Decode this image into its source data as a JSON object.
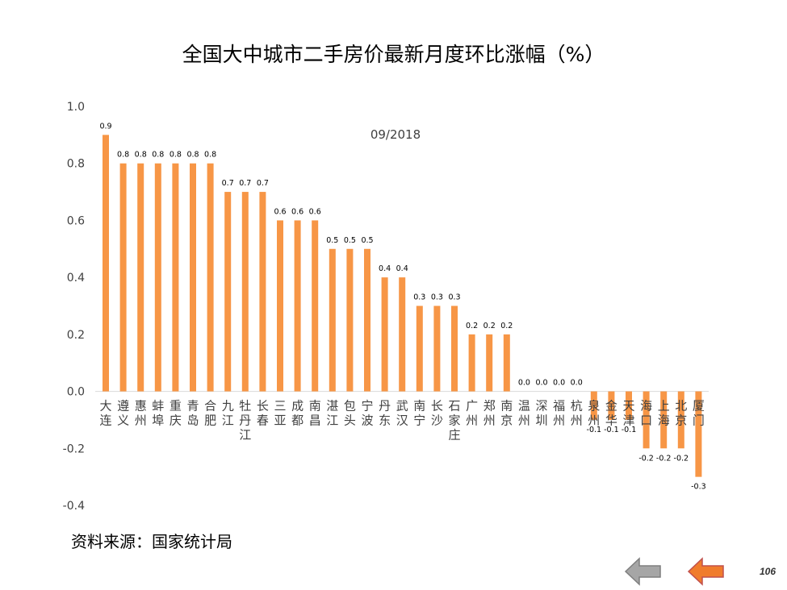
{
  "title": "全国大中城市二手房价最新月度环比涨幅（%）",
  "source": "资料来源：国家统计局",
  "page_number": "106",
  "colors": {
    "bar": "#F79646",
    "nav_back": "#A6A6A6",
    "nav_forward": "#F07C2C"
  },
  "icons": {
    "back": "left-arrow-icon",
    "forward": "left-arrow-icon"
  },
  "chart_data": {
    "type": "bar",
    "title": "",
    "subtitle": "09/2018",
    "xlabel": "",
    "ylabel": "",
    "ylim": [
      -0.4,
      1.0
    ],
    "yticks": [
      "1.0",
      "0.8",
      "0.6",
      "0.4",
      "0.2",
      "0.0",
      "-0.2",
      "-0.4"
    ],
    "grid": false,
    "legend": false,
    "categories": [
      "大连",
      "遵义",
      "惠州",
      "蚌埠",
      "重庆",
      "青岛",
      "合肥",
      "九江",
      "牡丹江",
      "长春",
      "三亚",
      "成都",
      "南昌",
      "湛江",
      "包头",
      "宁波",
      "丹东",
      "武汉",
      "南宁",
      "长沙",
      "石家庄",
      "广州",
      "郑州",
      "南京",
      "温州",
      "深圳",
      "福州",
      "杭州",
      "泉州",
      "金华",
      "天津",
      "海口",
      "上海",
      "北京",
      "厦门"
    ],
    "values": [
      0.9,
      0.8,
      0.8,
      0.8,
      0.8,
      0.8,
      0.8,
      0.7,
      0.7,
      0.7,
      0.6,
      0.6,
      0.6,
      0.5,
      0.5,
      0.5,
      0.4,
      0.4,
      0.3,
      0.3,
      0.3,
      0.2,
      0.2,
      0.2,
      0.0,
      0.0,
      0.0,
      0.0,
      -0.1,
      -0.1,
      -0.1,
      -0.2,
      -0.2,
      -0.2,
      -0.3
    ],
    "data_labels": [
      "0.9",
      "0.8",
      "0.8",
      "0.8",
      "0.8",
      "0.8",
      "0.8",
      "0.7",
      "0.7",
      "0.7",
      "0.6",
      "0.6",
      "0.6",
      "0.5",
      "0.5",
      "0.5",
      "0.4",
      "0.4",
      "0.3",
      "0.3",
      "0.3",
      "0.2",
      "0.2",
      "0.2",
      "0.0",
      "0.0",
      "0.0",
      "0.0",
      "-0.1",
      "-0.1",
      "-0.1",
      "-0.2",
      "-0.2",
      "-0.2",
      "-0.3"
    ]
  }
}
